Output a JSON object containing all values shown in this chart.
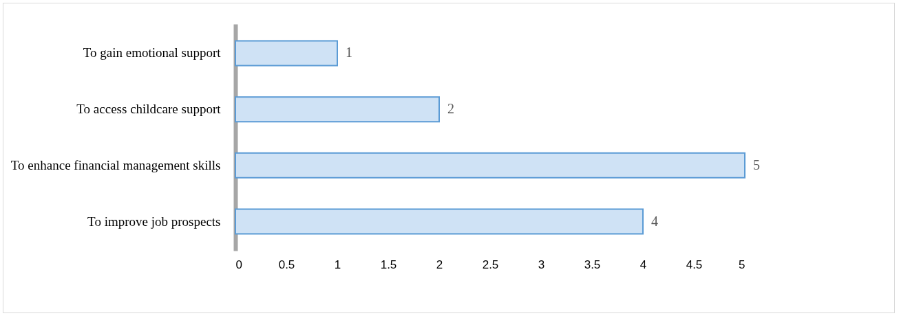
{
  "chart_data": {
    "type": "bar",
    "orientation": "horizontal",
    "categories": [
      "To gain emotional support",
      "To access childcare support",
      "To enhance financial management skills",
      "To improve job prospects"
    ],
    "values": [
      1,
      2,
      5,
      4
    ],
    "color": "#cfe2f5",
    "xlim": [
      0,
      5
    ],
    "xticks": [
      0,
      0.5,
      1,
      1.5,
      2,
      2.5,
      3,
      3.5,
      4,
      4.5,
      5
    ],
    "data_labels": true,
    "grid": false
  }
}
